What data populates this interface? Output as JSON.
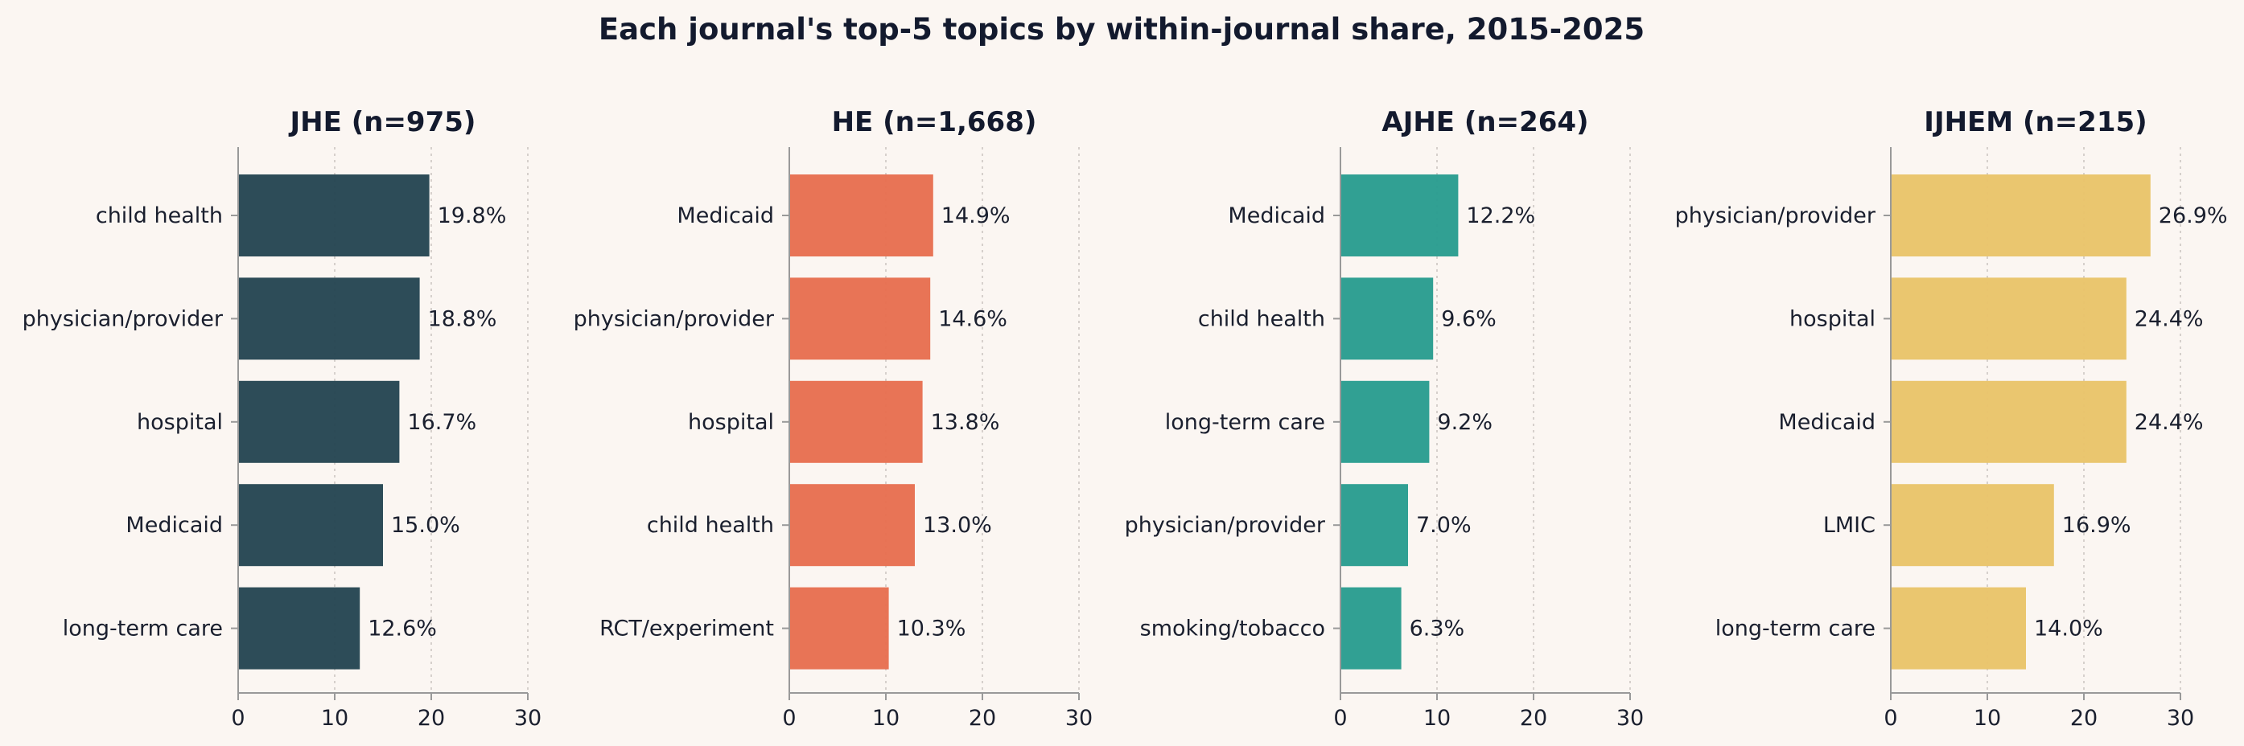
{
  "title": "Each journal's top-5 topics by within-journal share, 2015-2025",
  "chart_data": [
    {
      "type": "bar",
      "orientation": "horizontal",
      "title": "JHE (n=975)",
      "color": "#264653",
      "xlim": [
        0,
        30
      ],
      "xticks": [
        "0",
        "10",
        "20",
        "30"
      ],
      "grid": "x",
      "categories": [
        "child health",
        "physician/provider",
        "hospital",
        "Medicaid",
        "long-term care"
      ],
      "values": [
        19.8,
        18.8,
        16.7,
        15.0,
        12.6
      ],
      "value_labels": [
        "19.8%",
        "18.8%",
        "16.7%",
        "15.0%",
        "12.6%"
      ]
    },
    {
      "type": "bar",
      "orientation": "horizontal",
      "title": "HE (n=1,668)",
      "color": "#e76f51",
      "xlim": [
        0,
        30
      ],
      "xticks": [
        "0",
        "10",
        "20",
        "30"
      ],
      "grid": "x",
      "categories": [
        "Medicaid",
        "physician/provider",
        "hospital",
        "child health",
        "RCT/experiment"
      ],
      "values": [
        14.9,
        14.6,
        13.8,
        13.0,
        10.3
      ],
      "value_labels": [
        "14.9%",
        "14.6%",
        "13.8%",
        "13.0%",
        "10.3%"
      ]
    },
    {
      "type": "bar",
      "orientation": "horizontal",
      "title": "AJHE (n=264)",
      "color": "#2a9d8f",
      "xlim": [
        0,
        30
      ],
      "xticks": [
        "0",
        "10",
        "20",
        "30"
      ],
      "grid": "x",
      "categories": [
        "Medicaid",
        "child health",
        "long-term care",
        "physician/provider",
        "smoking/tobacco"
      ],
      "values": [
        12.2,
        9.6,
        9.2,
        7.0,
        6.3
      ],
      "value_labels": [
        "12.2%",
        "9.6%",
        "9.2%",
        "7.0%",
        "6.3%"
      ]
    },
    {
      "type": "bar",
      "orientation": "horizontal",
      "title": "IJHEM (n=215)",
      "color": "#e9c46a",
      "xlim": [
        0,
        30
      ],
      "xticks": [
        "0",
        "10",
        "20",
        "30"
      ],
      "grid": "x",
      "categories": [
        "physician/provider",
        "hospital",
        "Medicaid",
        "LMIC",
        "long-term care"
      ],
      "values": [
        26.9,
        24.4,
        24.4,
        16.9,
        14.0
      ],
      "value_labels": [
        "26.9%",
        "24.4%",
        "24.4%",
        "16.9%",
        "14.0%"
      ]
    }
  ]
}
